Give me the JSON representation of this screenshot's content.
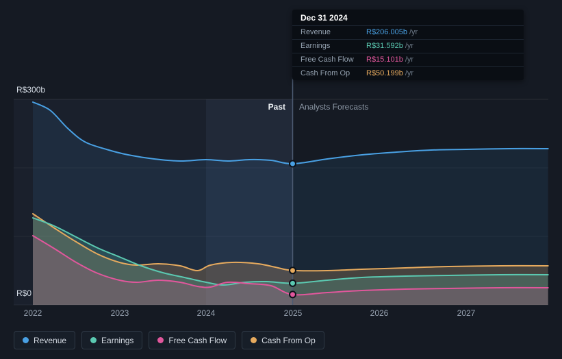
{
  "tooltip": {
    "date": "Dec 31 2024",
    "rows": [
      {
        "label": "Revenue",
        "value": "R$206.005b",
        "suffix": "/yr",
        "color": "#49a0e3"
      },
      {
        "label": "Earnings",
        "value": "R$31.592b",
        "suffix": "/yr",
        "color": "#5bc9b1"
      },
      {
        "label": "Free Cash Flow",
        "value": "R$15.101b",
        "suffix": "/yr",
        "color": "#e1579c"
      },
      {
        "label": "Cash From Op",
        "value": "R$50.199b",
        "suffix": "/yr",
        "color": "#e6aa5e"
      }
    ]
  },
  "axes": {
    "y_top": "R$300b",
    "y_bottom": "R$0",
    "past_label": "Past",
    "forecast_label": "Analysts Forecasts"
  },
  "legend": [
    {
      "label": "Revenue",
      "color": "#49a0e3"
    },
    {
      "label": "Earnings",
      "color": "#5bc9b1"
    },
    {
      "label": "Free Cash Flow",
      "color": "#e1579c"
    },
    {
      "label": "Cash From Op",
      "color": "#e6aa5e"
    }
  ],
  "chart_data": {
    "type": "area",
    "unit": "R$ billions per year",
    "title": "Past performance and analysts forecasts of revenue, earnings and cash flows",
    "xlim": [
      2021.95,
      2027.95
    ],
    "ylim": [
      0,
      300
    ],
    "x_ticks": [
      2022,
      2023,
      2024,
      2025,
      2026,
      2027
    ],
    "divider_x": 2025,
    "past_region": [
      2021.95,
      2025
    ],
    "highlight_region": [
      2024,
      2025
    ],
    "marker_x": 2025,
    "series": [
      {
        "name": "Revenue",
        "color": "#49a0e3",
        "fill": "rgba(73,160,227,0.10)",
        "marker_value": 206.005,
        "points": [
          [
            2022,
            296
          ],
          [
            2022.2,
            284
          ],
          [
            2022.4,
            258
          ],
          [
            2022.6,
            238
          ],
          [
            2022.85,
            227
          ],
          [
            2023.1,
            219
          ],
          [
            2023.4,
            213
          ],
          [
            2023.7,
            210
          ],
          [
            2024,
            212
          ],
          [
            2024.25,
            210
          ],
          [
            2024.5,
            212
          ],
          [
            2024.75,
            211
          ],
          [
            2025,
            206.005
          ],
          [
            2025.4,
            213
          ],
          [
            2025.8,
            219
          ],
          [
            2026.2,
            223
          ],
          [
            2026.6,
            226
          ],
          [
            2027,
            227
          ],
          [
            2027.5,
            228
          ],
          [
            2027.95,
            228
          ]
        ]
      },
      {
        "name": "Cash From Op",
        "color": "#e6aa5e",
        "fill": "rgba(230,170,94,0.22)",
        "marker_value": 50.199,
        "points": [
          [
            2022,
            133
          ],
          [
            2022.25,
            112
          ],
          [
            2022.5,
            92
          ],
          [
            2022.75,
            74
          ],
          [
            2023,
            62
          ],
          [
            2023.2,
            58
          ],
          [
            2023.45,
            60
          ],
          [
            2023.7,
            57
          ],
          [
            2023.9,
            50
          ],
          [
            2024.05,
            58
          ],
          [
            2024.3,
            62
          ],
          [
            2024.6,
            60
          ],
          [
            2024.8,
            55
          ],
          [
            2025,
            50.199
          ],
          [
            2025.4,
            50
          ],
          [
            2025.8,
            52
          ],
          [
            2026.3,
            54
          ],
          [
            2026.8,
            56
          ],
          [
            2027.4,
            57
          ],
          [
            2027.95,
            57
          ]
        ]
      },
      {
        "name": "Earnings",
        "color": "#5bc9b1",
        "fill": "rgba(91,201,177,0.22)",
        "marker_value": 31.592,
        "points": [
          [
            2022,
            127
          ],
          [
            2022.25,
            115
          ],
          [
            2022.5,
            99
          ],
          [
            2022.75,
            83
          ],
          [
            2023,
            70
          ],
          [
            2023.25,
            57
          ],
          [
            2023.5,
            47
          ],
          [
            2023.75,
            40
          ],
          [
            2024,
            33
          ],
          [
            2024.2,
            29
          ],
          [
            2024.45,
            33
          ],
          [
            2024.7,
            34
          ],
          [
            2025,
            31.592
          ],
          [
            2025.4,
            36
          ],
          [
            2025.8,
            40
          ],
          [
            2026.3,
            42
          ],
          [
            2026.8,
            43
          ],
          [
            2027.4,
            44
          ],
          [
            2027.95,
            44
          ]
        ]
      },
      {
        "name": "Free Cash Flow",
        "color": "#e1579c",
        "fill": "rgba(225,87,156,0.18)",
        "marker_value": 15.101,
        "points": [
          [
            2022,
            101
          ],
          [
            2022.25,
            82
          ],
          [
            2022.5,
            62
          ],
          [
            2022.75,
            46
          ],
          [
            2023,
            36
          ],
          [
            2023.2,
            33
          ],
          [
            2023.45,
            36
          ],
          [
            2023.7,
            33
          ],
          [
            2023.9,
            27
          ],
          [
            2024.05,
            26
          ],
          [
            2024.25,
            33
          ],
          [
            2024.5,
            31
          ],
          [
            2024.75,
            28
          ],
          [
            2025,
            15.101
          ],
          [
            2025.4,
            18
          ],
          [
            2025.8,
            21
          ],
          [
            2026.3,
            23
          ],
          [
            2026.8,
            24
          ],
          [
            2027.4,
            25
          ],
          [
            2027.95,
            25
          ]
        ]
      }
    ]
  }
}
